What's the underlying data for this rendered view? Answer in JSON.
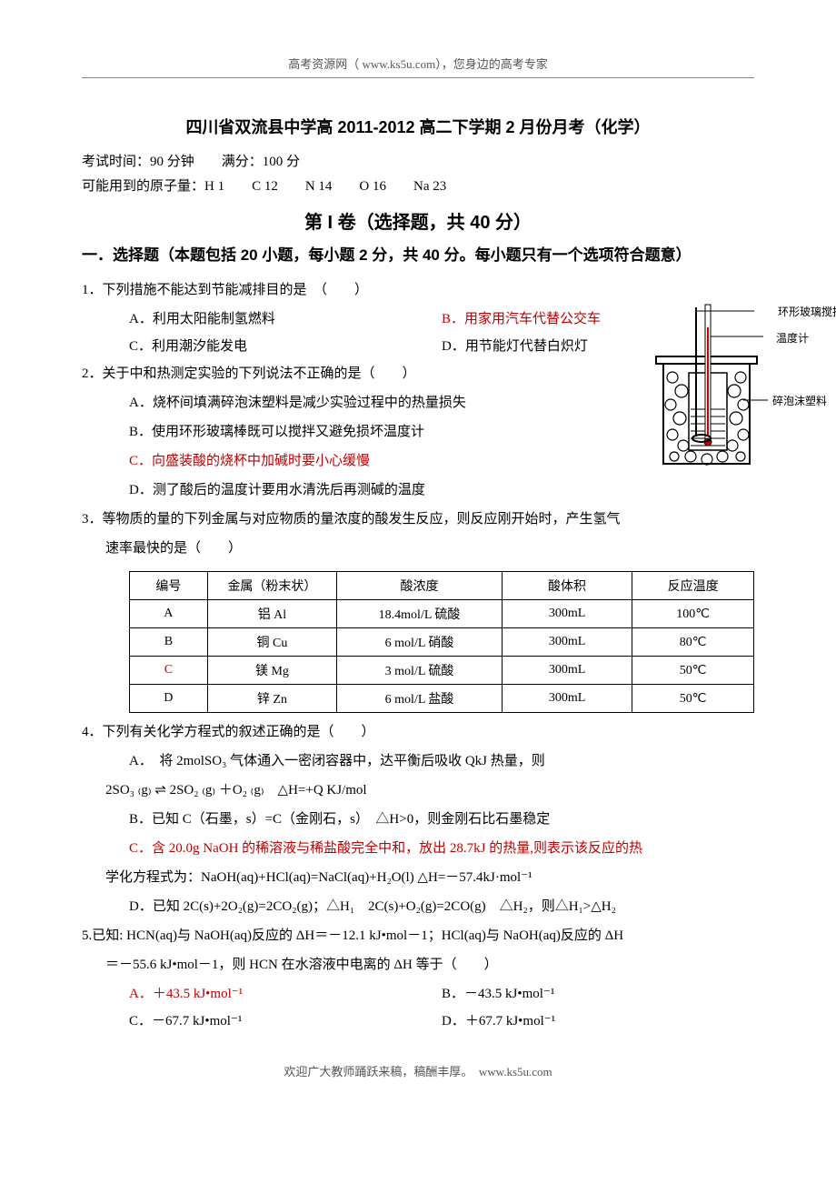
{
  "header": {
    "text_pre": "高考资源网（ ",
    "url": "www.ks5u.com",
    "text_post": "），您身边的高考专家"
  },
  "title": "四川省双流县中学高 2011-2012 高二下学期 2 月份月考（化学）",
  "meta": {
    "line1": "考试时间：90 分钟　　满分：100 分",
    "line2": "可能用到的原子量：H 1　　C 12　　N 14　　O 16　　Na 23"
  },
  "part_title": "第 I 卷（选择题，共 40 分）",
  "section_title": "一．选择题（本题包括 20 小题，每小题 2 分，共 40 分。每小题只有一个选项符合题意）",
  "diagram": {
    "label_stir": "环形玻璃搅拌棒",
    "label_therm": "温度计",
    "label_foam": "碎泡沫塑料"
  },
  "q1": {
    "stem": "1．下列措施不能达到节能减排目的是　（　　）",
    "A": "A．利用太阳能制氢燃料",
    "B": "B．用家用汽车代替公交车",
    "C": "C．利用潮汐能发电",
    "D": "D．用节能灯代替白炽灯"
  },
  "q2": {
    "stem": "2．关于中和热测定实验的下列说法不正确的是（　　）",
    "A": "A．烧杯间填满碎泡沫塑料是减少实验过程中的热量损失",
    "B": "B．使用环形玻璃棒既可以搅拌又避免损坏温度计",
    "C": "C．向盛装酸的烧杯中加碱时要小心缓慢",
    "D": "D．测了酸后的温度计要用水清洗后再测碱的温度"
  },
  "q3": {
    "stem_l1": "3．等物质的量的下列金属与对应物质的量浓度的酸发生反应，则反应刚开始时，产生氢气",
    "stem_l2": "速率最快的是（　　）",
    "table": {
      "columns": [
        "编号",
        "金属（粉末状）",
        "酸浓度",
        "酸体积",
        "反应温度"
      ],
      "rows": [
        [
          "A",
          "铝 Al",
          "18.4mol/L 硫酸",
          "300mL",
          "100℃"
        ],
        [
          "B",
          "铜 Cu",
          "6 mol/L 硝酸",
          "300mL",
          "80℃"
        ],
        [
          "C",
          "镁 Mg",
          "3 mol/L 硫酸",
          "300mL",
          "50℃"
        ],
        [
          "D",
          "锌 Zn",
          "6 mol/L 盐酸",
          "300mL",
          "50℃"
        ]
      ],
      "red_row_index": 2,
      "col_widths": [
        "60px",
        "120px",
        "160px",
        "120px",
        "110px"
      ]
    }
  },
  "q4": {
    "stem": "4．下列有关化学方程式的叙述正确的是（　　）",
    "A_l1": "A．　将 2molSO₃ 气体通入一密闭容器中，达平衡后吸收 QkJ 热量，则",
    "A_l2": "2SO₃ ₍g₎ ⇌ 2SO₂ ₍g₎ ＋O₂ ₍g₎　△H=+Q KJ/mol",
    "B": "B．已知 C（石墨，s）=C（金刚石，s）　△H>0，则金刚石比石墨稳定",
    "C_l1": "C．含 20.0g NaOH 的稀溶液与稀盐酸完全中和，放出 28.7kJ 的热量,则表示该反应的热",
    "C_l2": "学化方程式为：NaOH(aq)+HCl(aq)=NaCl(aq)+H₂O(l)  △H=－57.4kJ·mol⁻¹",
    "D": "D．已知 2C(s)+2O₂(g)=2CO₂(g)；△H₁　2C(s)+O₂(g)=2CO(g)　△H₂，则△H₁>△H₂"
  },
  "q5": {
    "stem_l1": "5.已知: HCN(aq)与 NaOH(aq)反应的 ΔH＝－12.1 kJ•mol－1；HCl(aq)与 NaOH(aq)反应的 ΔH",
    "stem_l2": "＝－55.6 kJ•mol－1，则 HCN 在水溶液中电离的 ΔH 等于（　　）",
    "A": "A．＋43.5 kJ•mol⁻¹",
    "B": "B．－43.5 kJ•mol⁻¹",
    "C": "C．－67.7 kJ•mol⁻¹",
    "D": "D．＋67.7 kJ•mol⁻¹"
  },
  "footer": {
    "text_pre": "欢迎广大教师踊跃来稿，稿酬丰厚。　",
    "url": "www.ks5u.com"
  }
}
